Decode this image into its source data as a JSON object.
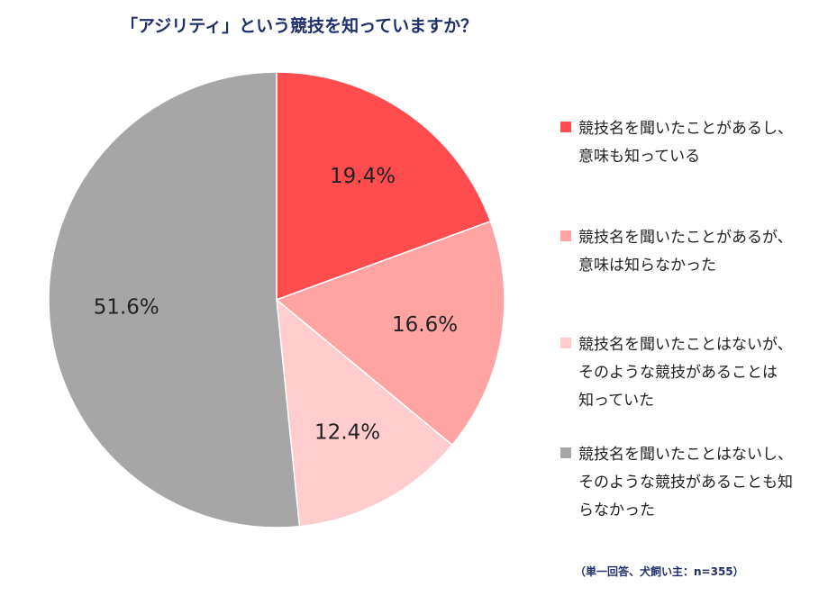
{
  "chart_data": {
    "type": "pie",
    "title": "「アジリティ」という競技を知っていますか？",
    "start": "top",
    "direction": "clockwise",
    "legend_position": "right",
    "slices": [
      {
        "label_lines": [
          "競技名を聞いたことがあるし、",
          "意味も知っている"
        ],
        "value": 19.4,
        "value_label": "19.4%",
        "color": "#ff4d4f"
      },
      {
        "label_lines": [
          "競技名を聞いたことがあるが、",
          "意味は知らなかった"
        ],
        "value": 16.6,
        "value_label": "16.6%",
        "color": "#ffa3a3"
      },
      {
        "label_lines": [
          "競技名を聞いたことはないが、",
          "そのような競技があることは",
          "知っていた"
        ],
        "value": 12.4,
        "value_label": "12.4%",
        "color": "#ffcdcd"
      },
      {
        "label_lines": [
          "競技名を聞いたことはないし、",
          "そのような競技があることも知",
          "らなかった"
        ],
        "value": 51.6,
        "value_label": "51.6%",
        "color": "#a6a6a6"
      }
    ],
    "note": "（単一回答、犬飼い主：n=355）"
  }
}
